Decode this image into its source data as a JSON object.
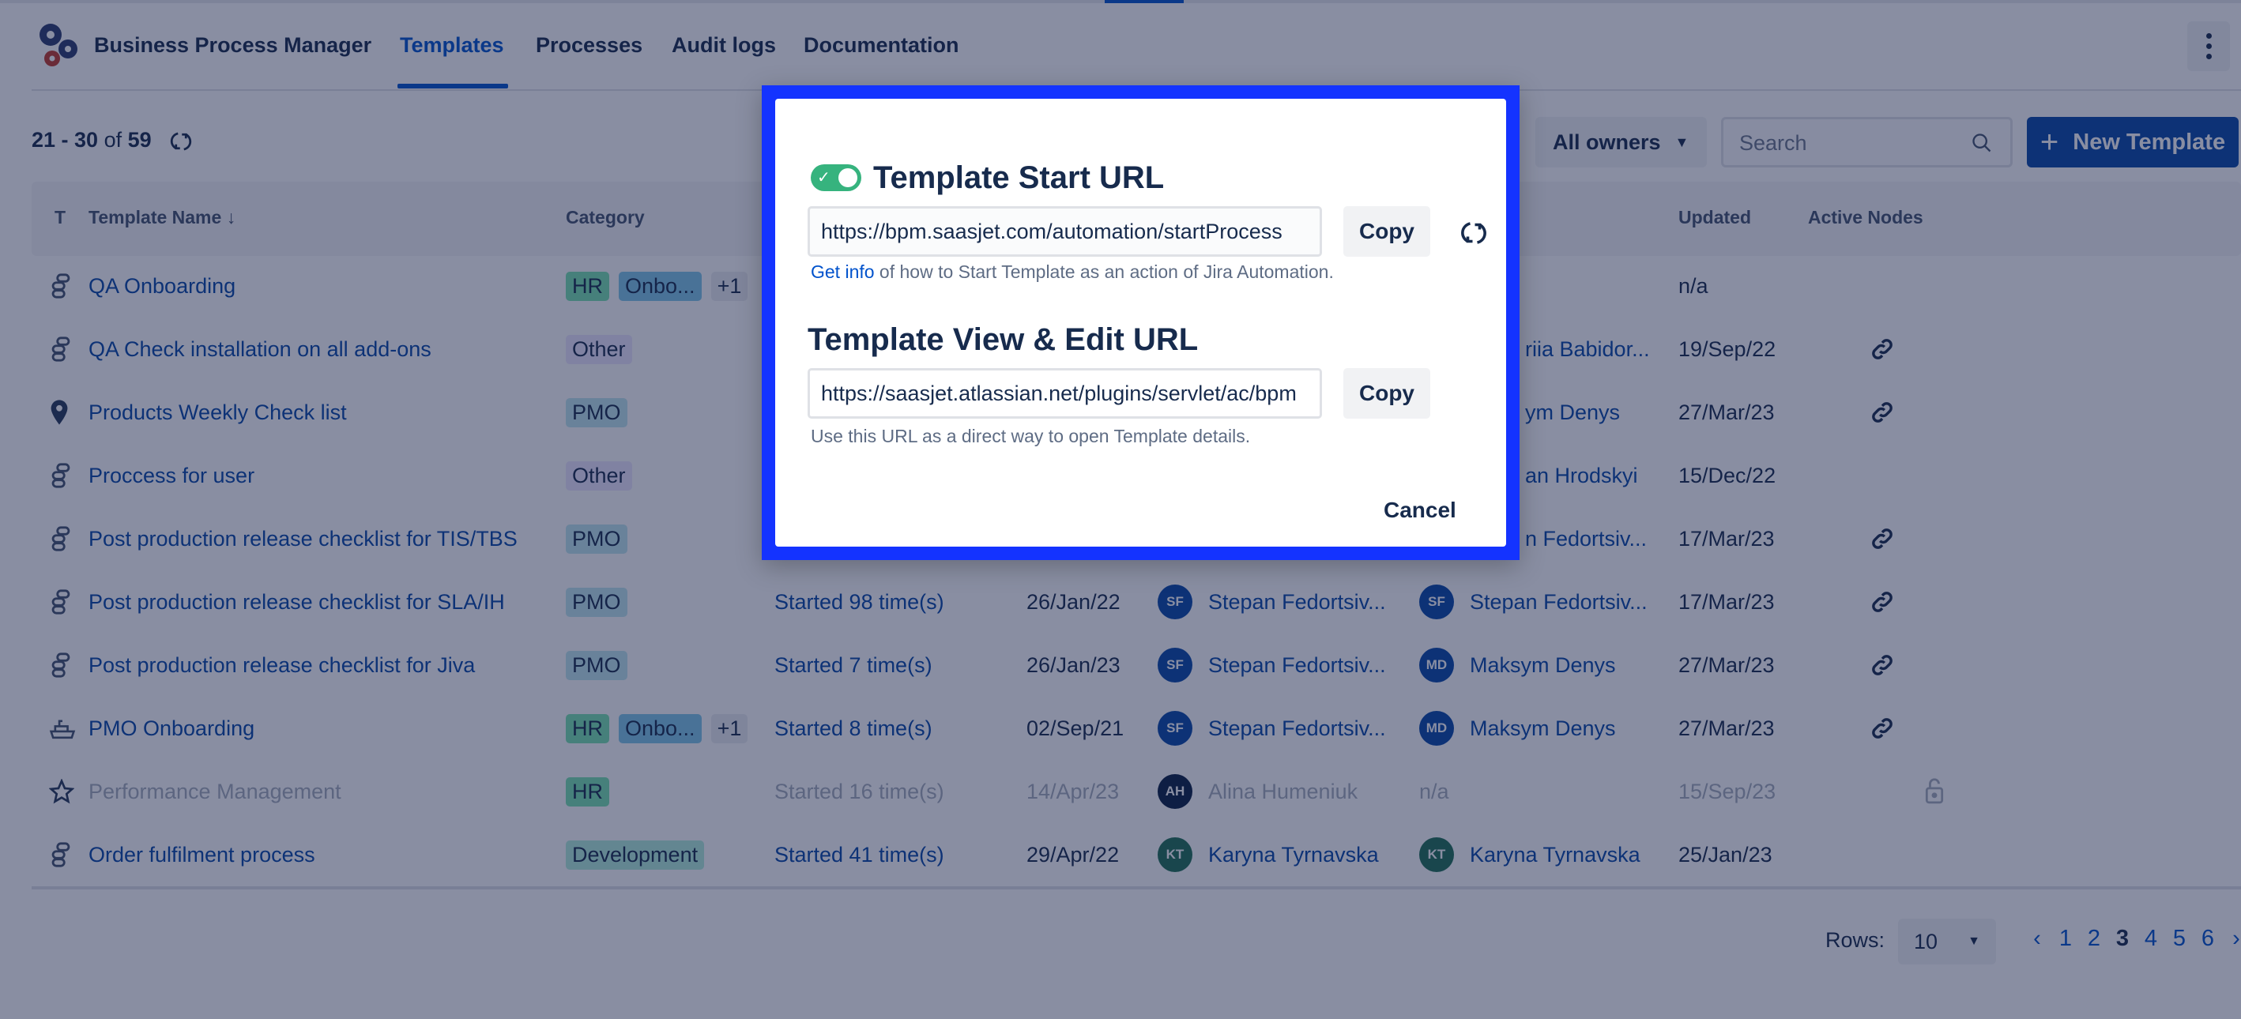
{
  "app": {
    "title": "Business Process Manager",
    "logo_icon": "gears-icon"
  },
  "nav": {
    "tabs": [
      {
        "label": "Templates",
        "active": true
      },
      {
        "label": "Processes",
        "active": false
      },
      {
        "label": "Audit logs",
        "active": false
      },
      {
        "label": "Documentation",
        "active": false
      }
    ]
  },
  "toolbar": {
    "range": "21 - 30",
    "of": "of",
    "total": "59",
    "owners_filter": "All owners",
    "search_placeholder": "Search",
    "new_template": "New Template"
  },
  "table": {
    "headers": {
      "type": "T",
      "name": "Template Name ↓",
      "category": "Category",
      "updated": "Updated",
      "active_nodes": "Active Nodes"
    },
    "rows": [
      {
        "icon": "process",
        "name": "QA Onboarding",
        "categories": [
          {
            "label": "HR",
            "color": "#79e2b0"
          },
          {
            "label": "Onbo...",
            "color": "#7fc7e8"
          }
        ],
        "extra": "+1",
        "updater_partial": "",
        "updated": "n/a",
        "link": false,
        "disabled": false
      },
      {
        "icon": "process",
        "name": "QA Check installation on all add-ons",
        "categories": [
          {
            "label": "Other",
            "color": "#ece6ff"
          }
        ],
        "updater_partial": "riia Babidor...",
        "updated": "19/Sep/22",
        "link": true,
        "disabled": false
      },
      {
        "icon": "pin",
        "name": "Products Weekly Check list",
        "categories": [
          {
            "label": "PMO",
            "color": "#bfe6ee"
          }
        ],
        "updater_partial": "ym Denys",
        "updated": "27/Mar/23",
        "link": true,
        "disabled": false
      },
      {
        "icon": "process",
        "name": "Proccess for user",
        "categories": [
          {
            "label": "Other",
            "color": "#ece6ff"
          }
        ],
        "updater_partial": "an Hrodskyi",
        "updated": "15/Dec/22",
        "link": false,
        "disabled": false
      },
      {
        "icon": "process",
        "name": "Post production release checklist for TIS/TBS",
        "categories": [
          {
            "label": "PMO",
            "color": "#bfe6ee"
          }
        ],
        "updater_partial": "n Fedortsiv...",
        "updated": "17/Mar/23",
        "link": true,
        "disabled": false
      },
      {
        "icon": "process",
        "name": "Post production release checklist for SLA/IH",
        "categories": [
          {
            "label": "PMO",
            "color": "#bfe6ee"
          }
        ],
        "started": "Started 98 time(s)",
        "created": "26/Jan/22",
        "owner": {
          "initials": "SF",
          "name": "Stepan Fedortsiv...",
          "color": "#0747a6"
        },
        "updater": {
          "initials": "SF",
          "name": "Stepan Fedortsiv...",
          "color": "#0747a6"
        },
        "updated": "17/Mar/23",
        "link": true,
        "disabled": false
      },
      {
        "icon": "process",
        "name": "Post production release checklist for Jiva",
        "categories": [
          {
            "label": "PMO",
            "color": "#bfe6ee"
          }
        ],
        "started": "Started 7 time(s)",
        "created": "26/Jan/23",
        "owner": {
          "initials": "SF",
          "name": "Stepan Fedortsiv...",
          "color": "#0747a6"
        },
        "updater": {
          "initials": "MD",
          "name": "Maksym Denys",
          "color": "#0747a6"
        },
        "updated": "27/Mar/23",
        "link": true,
        "disabled": false
      },
      {
        "icon": "ship",
        "name": "PMO Onboarding",
        "categories": [
          {
            "label": "HR",
            "color": "#79e2b0"
          },
          {
            "label": "Onbo...",
            "color": "#7fc7e8"
          }
        ],
        "extra": "+1",
        "started": "Started 8 time(s)",
        "created": "02/Sep/21",
        "owner": {
          "initials": "SF",
          "name": "Stepan Fedortsiv...",
          "color": "#0747a6"
        },
        "updater": {
          "initials": "MD",
          "name": "Maksym Denys",
          "color": "#0747a6"
        },
        "updated": "27/Mar/23",
        "link": true,
        "disabled": false
      },
      {
        "icon": "star",
        "name": "Performance Management",
        "categories": [
          {
            "label": "HR",
            "color": "#79e2b0"
          }
        ],
        "started": "Started 16 time(s)",
        "created": "14/Apr/23",
        "owner": {
          "initials": "AH",
          "name": "Alina Humeniuk",
          "color": "#091e42"
        },
        "updater_na": "n/a",
        "updated": "15/Sep/23",
        "link": false,
        "lock": true,
        "disabled": true
      },
      {
        "icon": "process",
        "name": "Order fulfilment process",
        "categories": [
          {
            "label": "Development",
            "color": "#b3eedc"
          }
        ],
        "started": "Started 41 time(s)",
        "created": "29/Apr/22",
        "owner": {
          "initials": "KT",
          "name": "Karyna Tyrnavska",
          "color": "#1f6f55"
        },
        "updater": {
          "initials": "KT",
          "name": "Karyna Tyrnavska",
          "color": "#1f6f55"
        },
        "updated": "25/Jan/23",
        "link": false,
        "disabled": false
      }
    ]
  },
  "pagination": {
    "rows_label": "Rows:",
    "rows_value": "10",
    "prev": "‹",
    "next": "›",
    "pages": [
      "1",
      "2",
      "3",
      "4",
      "5",
      "6"
    ],
    "current": "3"
  },
  "modal": {
    "start_title": "Template Start URL",
    "start_enabled": true,
    "start_url": "https://bpm.saasjet.com/automation/startProcess",
    "copy": "Copy",
    "get_info": "Get info",
    "start_help": " of how to Start Template as an action of Jira Automation.",
    "view_title": "Template View & Edit URL",
    "view_url": "https://saasjet.atlassian.net/plugins/servlet/ac/bpm",
    "view_help": "Use this URL as a direct way to open Template details.",
    "cancel": "Cancel"
  },
  "colors": {
    "accent": "#0052cc",
    "modal_border": "#1433ff",
    "toggle_on": "#36b37e"
  }
}
